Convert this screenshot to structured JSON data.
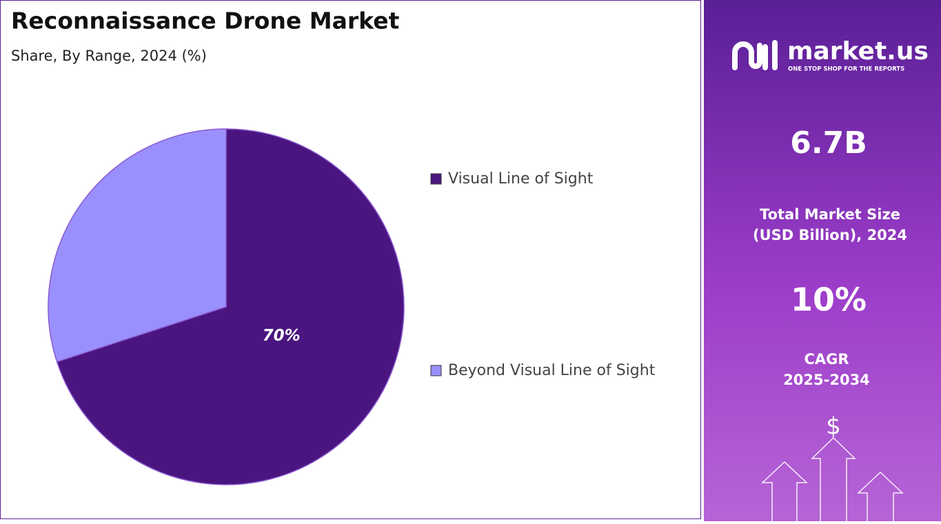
{
  "chart_data": {
    "type": "pie",
    "title": "Reconnaissance Drone Market",
    "subtitle": "Share, By Range, 2024 (%)",
    "categories": [
      "Visual Line of Sight",
      "Beyond Visual Line of Sight"
    ],
    "values": [
      70,
      30
    ],
    "value_labels": [
      "70%",
      null
    ],
    "colors": [
      "#4b1580",
      "#9a90fd"
    ],
    "legend": "right"
  },
  "side_panel": {
    "brand": "market.us",
    "tagline": "ONE STOP SHOP FOR THE REPORTS",
    "market_size": "6.7B",
    "market_size_label": [
      "Total Market Size",
      "(USD Billion), 2024"
    ],
    "cagr": "10%",
    "cagr_label": [
      "CAGR",
      "2025-2034"
    ],
    "icon_symbol": "$"
  }
}
